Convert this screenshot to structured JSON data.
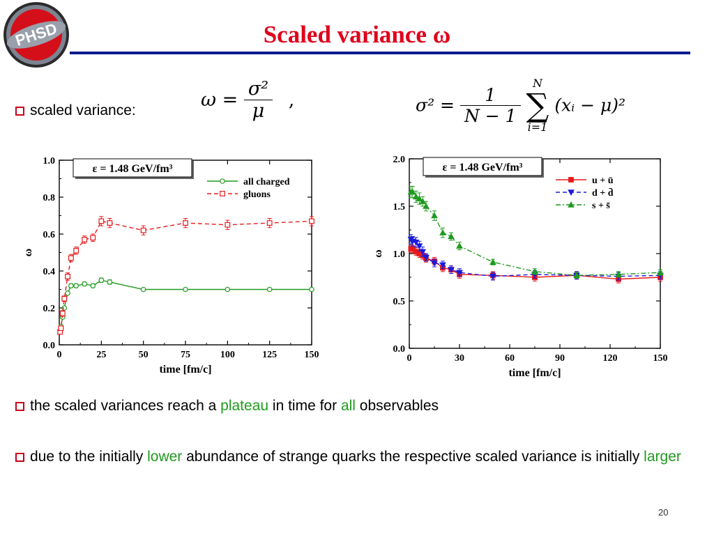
{
  "slide": {
    "logo_text": "PHSD",
    "title": "Scaled variance ω",
    "page_number": "20"
  },
  "bullets": [
    {
      "parts": [
        {
          "text": "scaled variance:",
          "hl": false
        }
      ]
    },
    {
      "parts": [
        {
          "text": "the scaled variances reach a ",
          "hl": false
        },
        {
          "text": "plateau",
          "hl": true
        },
        {
          "text": " in time for ",
          "hl": false
        },
        {
          "text": "all",
          "hl": true
        },
        {
          "text": " observables",
          "hl": false
        }
      ]
    },
    {
      "parts": [
        {
          "text": "due to the initially ",
          "hl": false
        },
        {
          "text": "lower",
          "hl": true
        },
        {
          "text": " abundance of strange quarks the respective scaled variance is initially ",
          "hl": false
        },
        {
          "text": "larger",
          "hl": true
        }
      ]
    }
  ],
  "formulas": {
    "omega_lhs": "ω =",
    "omega_num": "σ²",
    "omega_den": "μ",
    "omega_comma": ",",
    "sigma_lhs": "σ² =",
    "sigma_num": "1",
    "sigma_den": "N − 1",
    "sum_top": "N",
    "sum_sym": "∑",
    "sum_bottom": "i=1",
    "sum_body": "(xᵢ − μ)²"
  },
  "colors": {
    "title_red": "#e0001b",
    "rule_blue": "#0b1a8c",
    "highlight_green": "#1e9b1e",
    "red": "#e8191b",
    "green": "#1f9a1f",
    "blue": "#1a1adc"
  },
  "chart_data": [
    {
      "type": "line",
      "annotation": "ε = 1.48 GeV/fm³",
      "xlabel": "time [fm/c]",
      "ylabel": "ω",
      "xlim": [
        0,
        150
      ],
      "ylim": [
        0,
        1.0
      ],
      "xticks": [
        0,
        25,
        50,
        75,
        100,
        125,
        150
      ],
      "yticks": [
        0.0,
        0.2,
        0.4,
        0.6,
        0.8,
        1.0
      ],
      "xtick_labels": [
        "0",
        "25",
        "50",
        "75",
        "100",
        "125",
        "150"
      ],
      "ytick_labels": [
        "0.0",
        "0.2",
        "0.4",
        "0.6",
        "0.8",
        "1.0"
      ],
      "legend": "top-right",
      "series": [
        {
          "name": "all charged",
          "color": "#1f9a1f",
          "dash": "solid",
          "marker": "circle",
          "x": [
            0.5,
            1,
            2,
            3,
            5,
            7,
            10,
            15,
            20,
            25,
            30,
            50,
            75,
            100,
            125,
            150
          ],
          "y": [
            0.07,
            0.1,
            0.15,
            0.2,
            0.28,
            0.32,
            0.32,
            0.33,
            0.32,
            0.35,
            0.34,
            0.3,
            0.3,
            0.3,
            0.3,
            0.3
          ],
          "err": [
            0,
            0,
            0,
            0,
            0,
            0.01,
            0.01,
            0.01,
            0.01,
            0.012,
            0.012,
            0,
            0,
            0,
            0,
            0
          ]
        },
        {
          "name": "gluons",
          "color": "#e8191b",
          "dash": "dashed",
          "marker": "square",
          "x": [
            0.5,
            1,
            2,
            3,
            5,
            7,
            10,
            15,
            20,
            25,
            30,
            50,
            75,
            100,
            125,
            150
          ],
          "y": [
            0.07,
            0.09,
            0.17,
            0.25,
            0.37,
            0.47,
            0.51,
            0.57,
            0.58,
            0.67,
            0.66,
            0.62,
            0.66,
            0.65,
            0.66,
            0.67
          ],
          "err": [
            0.005,
            0.01,
            0.015,
            0.015,
            0.02,
            0.02,
            0.02,
            0.02,
            0.02,
            0.025,
            0.025,
            0.025,
            0.025,
            0.025,
            0.025,
            0.025
          ]
        }
      ]
    },
    {
      "type": "line",
      "annotation": "ε = 1.48 GeV/fm³",
      "xlabel": "time [fm/c]",
      "ylabel": "ω",
      "xlim": [
        0,
        150
      ],
      "ylim": [
        0,
        2.0
      ],
      "xticks": [
        0,
        30,
        60,
        90,
        120,
        150
      ],
      "yticks": [
        0.0,
        0.5,
        1.0,
        1.5,
        2.0
      ],
      "xtick_labels": [
        "0",
        "30",
        "60",
        "90",
        "120",
        "150"
      ],
      "ytick_labels": [
        "0.0",
        "0.5",
        "1.0",
        "1.5",
        "2.0"
      ],
      "legend": "top-right",
      "series": [
        {
          "name": "u + ū",
          "color": "#e8191b",
          "dash": "solid",
          "marker": "square",
          "x": [
            1,
            2,
            4,
            6,
            8,
            10,
            15,
            20,
            25,
            30,
            50,
            75,
            100,
            125,
            150
          ],
          "y": [
            1.05,
            1.05,
            1.02,
            1.0,
            0.98,
            0.95,
            0.92,
            0.85,
            0.83,
            0.78,
            0.77,
            0.75,
            0.77,
            0.73,
            0.75
          ],
          "err": [
            0.04,
            0.04,
            0.04,
            0.04,
            0.04,
            0.04,
            0.04,
            0.04,
            0.04,
            0.04,
            0.04,
            0.04,
            0.04,
            0.04,
            0.04
          ]
        },
        {
          "name": "d + d̄",
          "color": "#1a1adc",
          "dash": "dashed",
          "marker": "triangle-down",
          "x": [
            1,
            2,
            4,
            6,
            8,
            10,
            15,
            20,
            25,
            30,
            50,
            75,
            100,
            125,
            150
          ],
          "y": [
            1.15,
            1.13,
            1.12,
            1.08,
            1.02,
            0.96,
            0.9,
            0.88,
            0.83,
            0.8,
            0.76,
            0.78,
            0.77,
            0.76,
            0.77
          ],
          "err": [
            0.05,
            0.05,
            0.05,
            0.05,
            0.05,
            0.04,
            0.04,
            0.04,
            0.04,
            0.04,
            0.04,
            0.04,
            0.04,
            0.04,
            0.04
          ]
        },
        {
          "name": "s + s̄",
          "color": "#1f9a1f",
          "dash": "dashdot",
          "marker": "triangle-up",
          "x": [
            1,
            2,
            4,
            6,
            8,
            10,
            15,
            20,
            25,
            30,
            50,
            75,
            100,
            125,
            150
          ],
          "y": [
            1.65,
            1.65,
            1.6,
            1.58,
            1.55,
            1.5,
            1.4,
            1.22,
            1.18,
            1.08,
            0.91,
            0.81,
            0.77,
            0.78,
            0.8
          ],
          "err": [
            0.06,
            0.06,
            0.06,
            0.06,
            0.05,
            0.05,
            0.05,
            0.05,
            0.04,
            0.04,
            0.03,
            0.03,
            0.03,
            0.03,
            0.03
          ]
        }
      ]
    }
  ]
}
